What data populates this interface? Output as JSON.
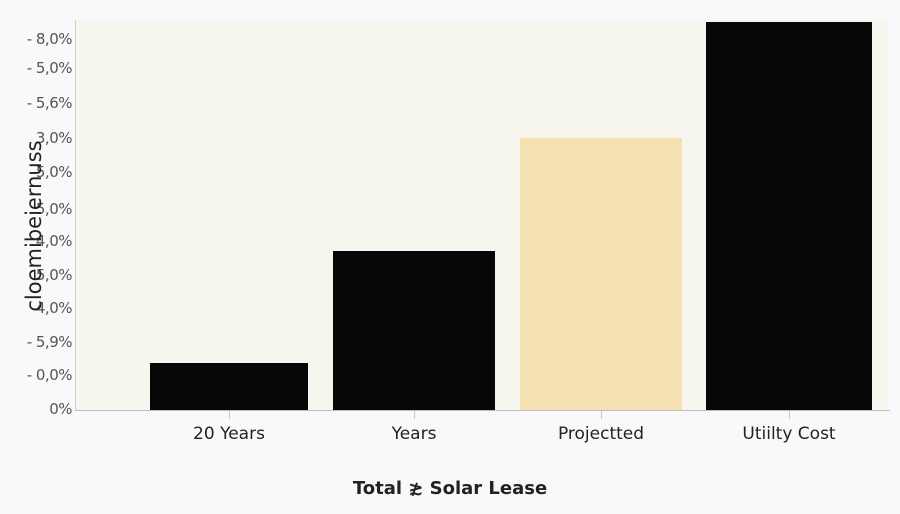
{
  "chart_data": {
    "type": "bar",
    "title": "",
    "xlabel": "Total ≵ Solar Lease",
    "ylabel": "cloemibeiernuss",
    "categories": [
      "20 Years",
      "Years",
      "Projectted",
      "Utiilty Cost"
    ],
    "values": [
      0.12,
      0.41,
      0.7,
      1.0
    ],
    "bar_colors": [
      "#070707",
      "#070707",
      "#f4e0b0",
      "#070707"
    ],
    "y_tick_labels": [
      "- 8,0%",
      "- 5,0%",
      "- 5,6%",
      "3,0%",
      "5,0%",
      "5,0%",
      "4,0%",
      "5,0%",
      "4,0%",
      "- 5,9%",
      "- 0,0%",
      "0%"
    ],
    "ylim": [
      0,
      1
    ],
    "grid": false,
    "legend": null,
    "plot_background": "#f7f6ee"
  },
  "labels": {
    "x_title": "Total ≵ Solar Lease",
    "y_title": "cloemibeiernuss"
  }
}
